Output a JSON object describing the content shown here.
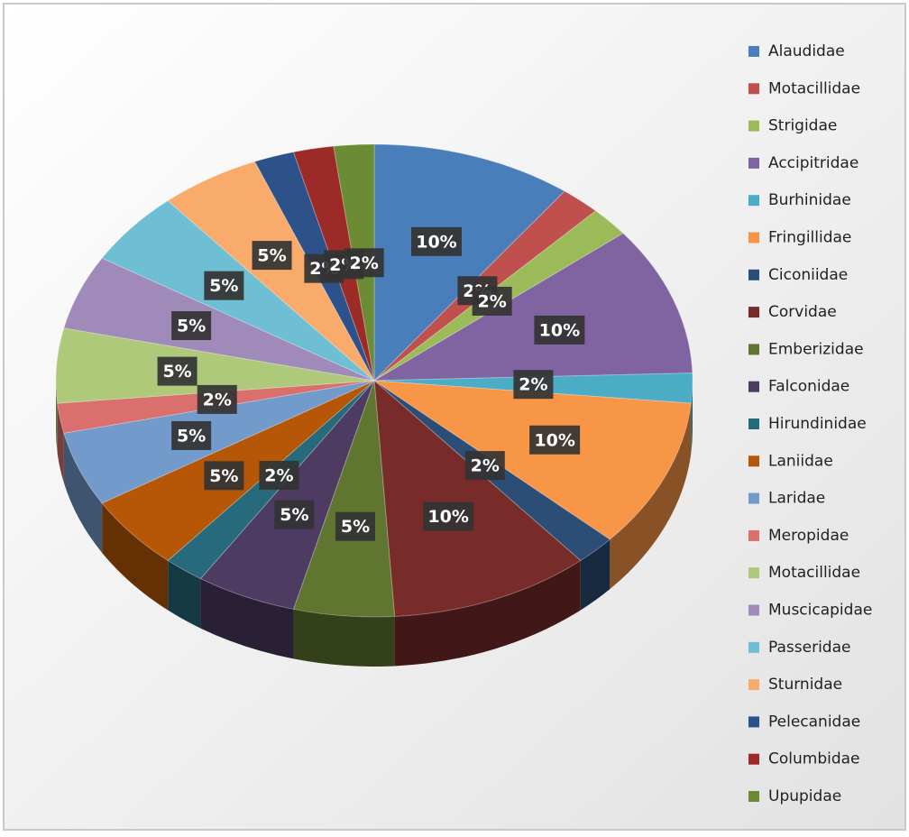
{
  "chart_data": {
    "type": "pie",
    "categories": [
      "Alaudidae",
      "Motacillidae",
      "Strigidae",
      "Accipitridae",
      "Burhinidae",
      "Fringillidae",
      "Ciconiidae",
      "Corvidae",
      "Emberizidae",
      "Falconidae",
      "Hirundinidae",
      "Laniidae",
      "Laridae",
      "Meropidae",
      "Motacillidae",
      "Muscicapidae",
      "Passeridae",
      "Sturnidae",
      "Pelecanidae",
      "Columbidae",
      "Upupidae"
    ],
    "values": [
      10,
      2,
      2,
      10,
      2,
      10,
      2,
      10,
      5,
      5,
      2,
      5,
      5,
      2,
      5,
      5,
      5,
      5,
      2,
      2,
      2
    ],
    "value_labels": [
      "10%",
      "2%",
      "2%",
      "10%",
      "2%",
      "10%",
      "2%",
      "10%",
      "5%",
      "5%",
      "2%",
      "5%",
      "5%",
      "2%",
      "5%",
      "5%",
      "5%",
      "5%",
      "2%",
      "2%",
      "2%"
    ],
    "colors": [
      "#4a7ebb",
      "#c0504d",
      "#9bbb59",
      "#8064a2",
      "#4bacc6",
      "#f79646",
      "#2c4d75",
      "#772c2a",
      "#5f7530",
      "#4d3b62",
      "#276a7c",
      "#b65708",
      "#729aca",
      "#d9706d",
      "#afc97a",
      "#a08ab9",
      "#6fbfd4",
      "#f9ab6b",
      "#2d5289",
      "#9c2b27",
      "#6c8b35"
    ],
    "legend": "right"
  }
}
